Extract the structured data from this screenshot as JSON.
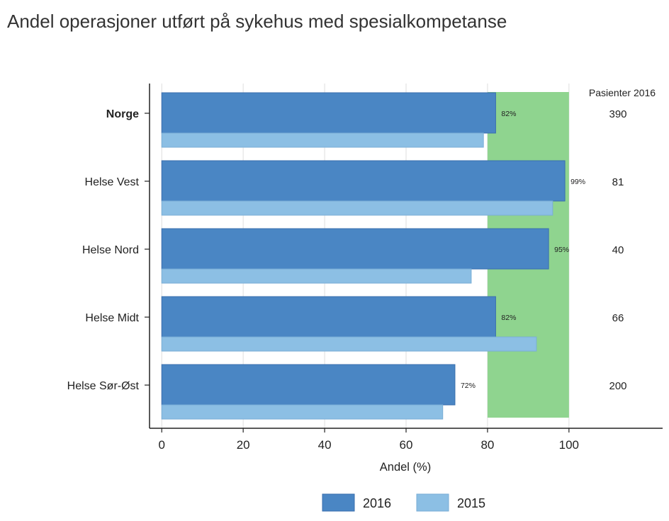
{
  "title": "Andel operasjoner utført på sykehus med spesialkompetanse",
  "chart_data": {
    "type": "bar",
    "orientation": "horizontal",
    "categories": [
      "Norge",
      "Helse Vest",
      "Helse Nord",
      "Helse Midt",
      "Helse Sør-Øst"
    ],
    "bold_categories": [
      "Norge"
    ],
    "series": [
      {
        "name": "2016",
        "values": [
          82,
          99,
          95,
          82,
          72
        ],
        "data_labels": [
          "82%",
          "99%",
          "95%",
          "82%",
          "72%"
        ],
        "color": "#4a86c4",
        "edge_color": "#3a6fae"
      },
      {
        "name": "2015",
        "values": [
          79,
          96,
          76,
          92,
          69
        ],
        "color": "#8cbfe4",
        "edge_color": "#7aaed6"
      }
    ],
    "xlabel": "Andel (%)",
    "ylabel": "",
    "xlim": [
      -3,
      123
    ],
    "xticks": [
      0,
      20,
      40,
      60,
      80,
      100
    ],
    "xtick_labels": [
      "0",
      "20",
      "40",
      "60",
      "80",
      "100"
    ],
    "grid": "vertical",
    "target_band": {
      "range": [
        80,
        100
      ],
      "color": "#8fd48f"
    },
    "right_column": {
      "header": "Pasienter 2016",
      "values": [
        "390",
        "81",
        "40",
        "66",
        "200"
      ]
    },
    "legend_position": "bottom"
  }
}
